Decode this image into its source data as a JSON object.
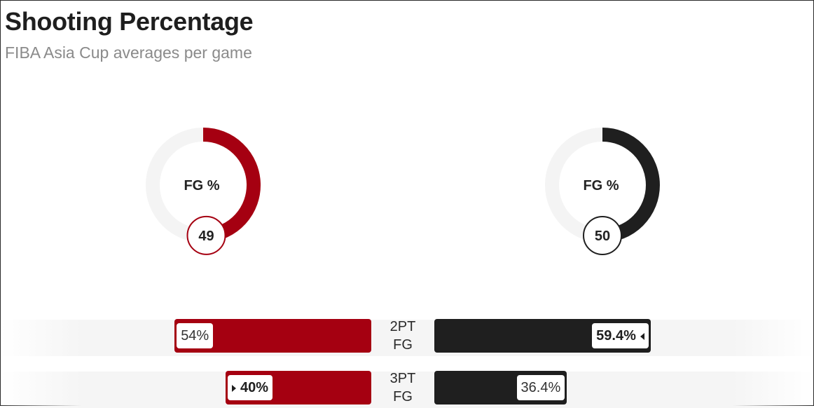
{
  "header": {
    "title": "Shooting Percentage",
    "subtitle": "FIBA Asia Cup averages per game"
  },
  "colors": {
    "team_a": "#a50011",
    "team_b": "#1f1f1f",
    "track": "#f4f4f4"
  },
  "chart_data": [
    {
      "type": "pie",
      "title": "",
      "donuts": [
        {
          "label": "FG %",
          "value": 49,
          "value_text": "49",
          "color": "#a50011"
        },
        {
          "label": "FG %",
          "value": 50,
          "value_text": "50",
          "color": "#1f1f1f"
        }
      ]
    },
    {
      "type": "bar",
      "title": "",
      "categories": [
        "2PT FG",
        "3PT FG"
      ],
      "category_lines": [
        [
          "2PT",
          "FG"
        ],
        [
          "3PT",
          "FG"
        ]
      ],
      "scale_max": 100,
      "series": [
        {
          "values": [
            54,
            40
          ],
          "labels": [
            "54%",
            "40%"
          ],
          "color": "#a50011",
          "winner": [
            false,
            true
          ]
        },
        {
          "values": [
            59.4,
            36.4
          ],
          "labels": [
            "59.4%",
            "36.4%"
          ],
          "color": "#1f1f1f",
          "winner": [
            true,
            false
          ]
        }
      ]
    }
  ]
}
